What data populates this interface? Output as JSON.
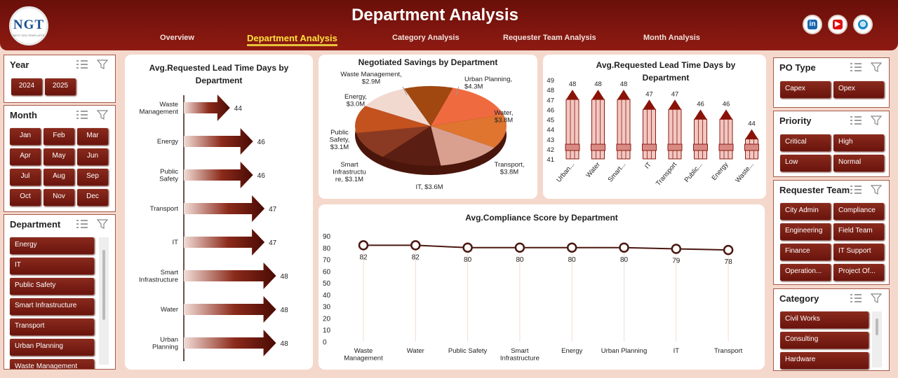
{
  "header": {
    "title": "Department Analysis",
    "logo_text": "NGT",
    "logo_sub": "NEXT GEN TEMPLATES",
    "nav": [
      "Overview",
      "Department Analysis",
      "Category Analysis",
      "Requester Team Analysis",
      "Month Analysis"
    ],
    "active_nav": "Department Analysis"
  },
  "slicers": {
    "year": {
      "title": "Year",
      "items": [
        "2024",
        "2025"
      ]
    },
    "month": {
      "title": "Month",
      "items": [
        "Jan",
        "Feb",
        "Mar",
        "Apr",
        "May",
        "Jun",
        "Jul",
        "Aug",
        "Sep",
        "Oct",
        "Nov",
        "Dec"
      ]
    },
    "department": {
      "title": "Department",
      "items": [
        "Energy",
        "IT",
        "Public Safety",
        "Smart Infrastructure",
        "Transport",
        "Urban Planning",
        "Waste Management"
      ]
    },
    "po_type": {
      "title": "PO Type",
      "items": [
        "Capex",
        "Opex"
      ]
    },
    "priority": {
      "title": "Priority",
      "items": [
        "Critical",
        "High",
        "Low",
        "Normal"
      ]
    },
    "requester_team": {
      "title": "Requester Team",
      "items": [
        "City Admin",
        "Compliance",
        "Engineering",
        "Field Team",
        "Finance",
        "IT Support",
        "Operation...",
        "Project Of..."
      ]
    },
    "category": {
      "title": "Category",
      "items": [
        "Civil Works",
        "Consulting",
        "Hardware"
      ]
    }
  },
  "social": {
    "linkedin": "linkedin-icon",
    "youtube": "youtube-icon",
    "web": "globe-icon"
  },
  "colors": {
    "header": "#7a1510",
    "accent": "#6a140d",
    "active_tab": "#ffe23a",
    "background": "#f5d8cc"
  },
  "chart_data": [
    {
      "type": "bar",
      "orientation": "horizontal",
      "title": "Avg.Requested Lead Time Days by Department",
      "categories": [
        "Waste Management",
        "Energy",
        "Public Safety",
        "Transport",
        "IT",
        "Smart Infrastructure",
        "Water",
        "Urban Planning"
      ],
      "values": [
        44,
        46,
        46,
        47,
        47,
        48,
        48,
        48
      ],
      "color": "#5a1008"
    },
    {
      "type": "pie",
      "title": "Negotiated Savings by Department",
      "slices": [
        {
          "label": "Urban Planning",
          "value": 4.3,
          "display": "$4.3M",
          "color": "#f06a40"
        },
        {
          "label": "Water",
          "value": 3.8,
          "display": "$3.8M",
          "color": "#e0752f"
        },
        {
          "label": "Transport",
          "value": 3.8,
          "display": "$3.8M",
          "color": "#d9a090"
        },
        {
          "label": "IT",
          "value": 3.6,
          "display": "$3.6M",
          "color": "#5a1e12"
        },
        {
          "label": "Smart Infrastructure",
          "value": 3.1,
          "display": "$3.1M",
          "color": "#8a3a22"
        },
        {
          "label": "Public Safety",
          "value": 3.1,
          "display": "$3.1M",
          "color": "#c4521e"
        },
        {
          "label": "Energy",
          "value": 3.0,
          "display": "$3.0M",
          "color": "#f2d9cf"
        },
        {
          "label": "Waste Management",
          "value": 2.9,
          "display": "$2.9M",
          "color": "#a04810"
        }
      ]
    },
    {
      "type": "bar",
      "title": "Avg.Requested Lead Time Days by Department",
      "categories": [
        "Urban...",
        "Water",
        "Smart...",
        "IT",
        "Transport",
        "Public...",
        "Energy",
        "Waste..."
      ],
      "values": [
        48,
        48,
        48,
        47,
        47,
        46,
        46,
        44
      ],
      "ylim": [
        41,
        49
      ],
      "yticks": [
        41,
        42,
        43,
        44,
        45,
        46,
        47,
        48,
        49
      ]
    },
    {
      "type": "line",
      "title": "Avg.Compliance Score by Department",
      "categories": [
        "Waste Management",
        "Water",
        "Public Safety",
        "Smart Infrastructure",
        "Energy",
        "Urban Planning",
        "IT",
        "Transport"
      ],
      "values": [
        82,
        82,
        80,
        80,
        80,
        80,
        79,
        78
      ],
      "ylim": [
        0,
        90
      ],
      "yticks": [
        0,
        10,
        20,
        30,
        40,
        50,
        60,
        70,
        80,
        90
      ]
    }
  ]
}
